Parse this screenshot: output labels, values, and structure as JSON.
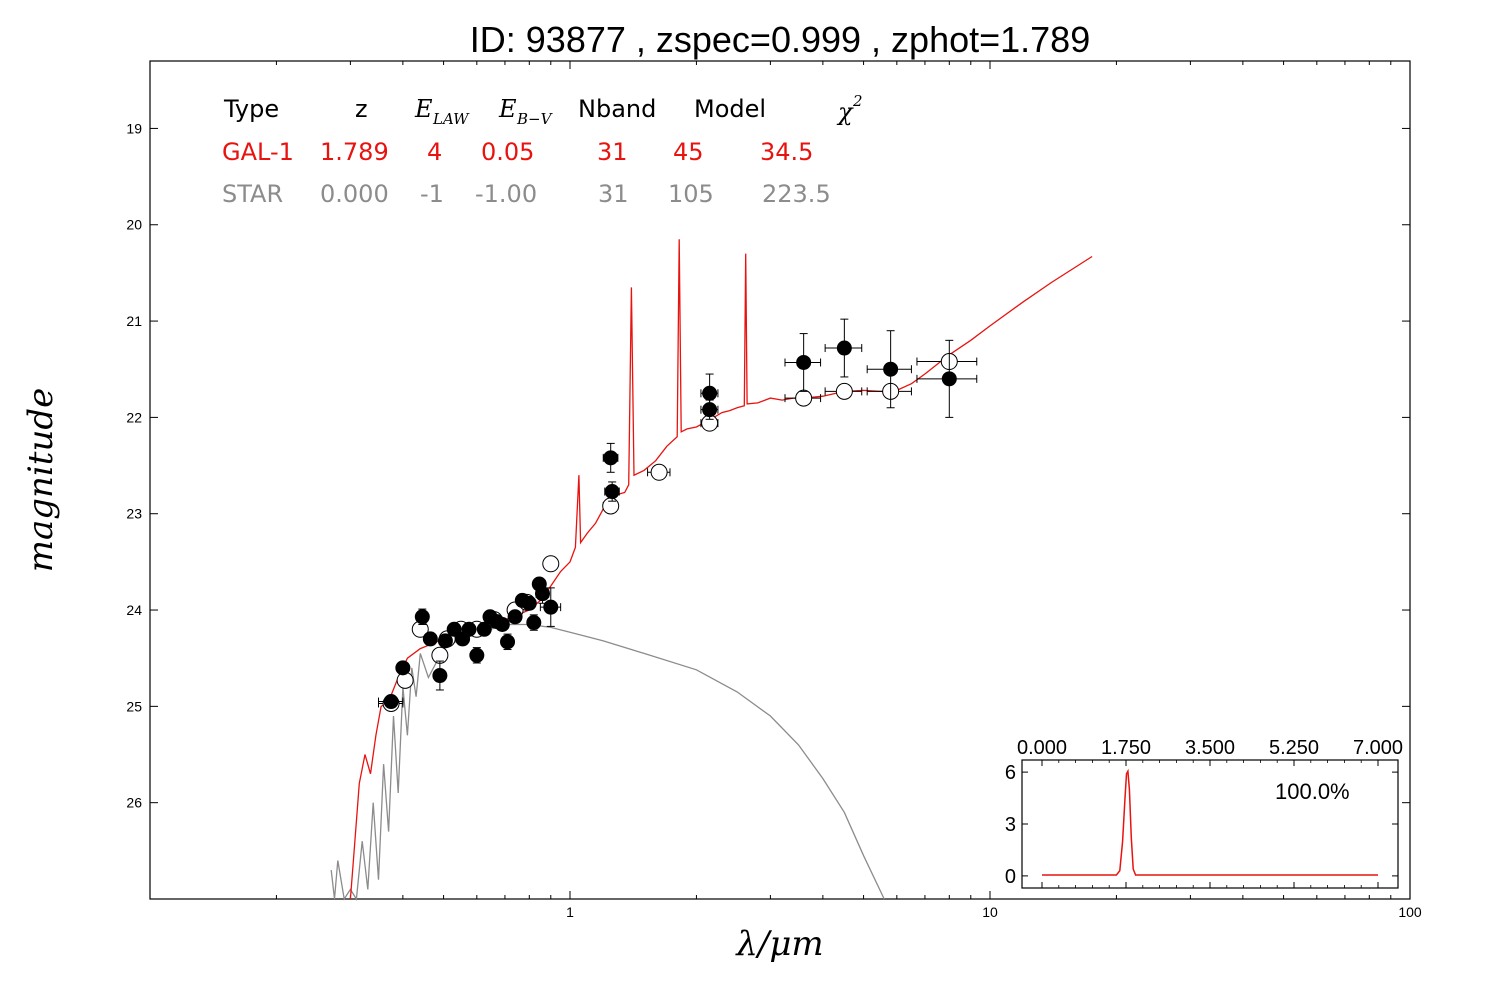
{
  "title": "ID:  93877 , zspec=0.999 , zphot=1.789",
  "colors": {
    "galaxy": "#e8130f",
    "star": "#8c8c8c",
    "points": "#000000"
  },
  "chart_data": {
    "type": "scatter",
    "xlabel": "λ/μm",
    "ylabel": "magnitude",
    "xscale": "log",
    "xlim": [
      0.1,
      100
    ],
    "ylim": [
      27,
      18.3
    ],
    "y_inverted": true,
    "xticks": [
      "1",
      "10",
      "100"
    ],
    "yticks": [
      "19",
      "20",
      "21",
      "22",
      "23",
      "24",
      "25",
      "26"
    ],
    "table": {
      "headers": [
        "Type",
        "z",
        "E_LAW",
        "E_B−V",
        "Nband",
        "Model",
        "χ²"
      ],
      "rows": [
        {
          "type": "GAL-1",
          "z": "1.789",
          "elaw": "4",
          "ebv": "0.05",
          "nband": "31",
          "model": "45",
          "chi2": "34.5"
        },
        {
          "type": "STAR",
          "z": "0.000",
          "elaw": "-1",
          "ebv": "-1.00",
          "nband": "31",
          "model": "105",
          "chi2": "223.5"
        }
      ]
    },
    "observed_points": [
      {
        "x": 0.375,
        "y": 24.95,
        "xerr": 0.025,
        "yerr": 0.05
      },
      {
        "x": 0.4,
        "y": 24.6,
        "xerr": 0.01,
        "yerr": 0.05
      },
      {
        "x": 0.445,
        "y": 24.07,
        "xerr": 0.01,
        "yerr": 0.08
      },
      {
        "x": 0.465,
        "y": 24.3,
        "xerr": 0.01,
        "yerr": 0.05
      },
      {
        "x": 0.49,
        "y": 24.68,
        "xerr": 0.01,
        "yerr": 0.15
      },
      {
        "x": 0.505,
        "y": 24.32,
        "xerr": 0.01,
        "yerr": 0.05
      },
      {
        "x": 0.53,
        "y": 24.2,
        "xerr": 0.01,
        "yerr": 0.05
      },
      {
        "x": 0.555,
        "y": 24.3,
        "xerr": 0.01,
        "yerr": 0.05
      },
      {
        "x": 0.575,
        "y": 24.2,
        "xerr": 0.01,
        "yerr": 0.05
      },
      {
        "x": 0.6,
        "y": 24.47,
        "xerr": 0.01,
        "yerr": 0.08
      },
      {
        "x": 0.625,
        "y": 24.2,
        "xerr": 0.01,
        "yerr": 0.05
      },
      {
        "x": 0.645,
        "y": 24.07,
        "xerr": 0.01,
        "yerr": 0.05
      },
      {
        "x": 0.67,
        "y": 24.12,
        "xerr": 0.01,
        "yerr": 0.05
      },
      {
        "x": 0.69,
        "y": 24.15,
        "xerr": 0.01,
        "yerr": 0.05
      },
      {
        "x": 0.71,
        "y": 24.33,
        "xerr": 0.01,
        "yerr": 0.08
      },
      {
        "x": 0.74,
        "y": 24.07,
        "xerr": 0.01,
        "yerr": 0.05
      },
      {
        "x": 0.77,
        "y": 23.9,
        "xerr": 0.02,
        "yerr": 0.05
      },
      {
        "x": 0.8,
        "y": 23.93,
        "xerr": 0.02,
        "yerr": 0.05
      },
      {
        "x": 0.82,
        "y": 24.13,
        "xerr": 0.02,
        "yerr": 0.08
      },
      {
        "x": 0.845,
        "y": 23.73,
        "xerr": 0.02,
        "yerr": 0.05
      },
      {
        "x": 0.86,
        "y": 23.83,
        "xerr": 0.03,
        "yerr": 0.1
      },
      {
        "x": 0.9,
        "y": 23.97,
        "xerr": 0.05,
        "yerr": 0.2
      },
      {
        "x": 1.25,
        "y": 22.42,
        "xerr": 0.05,
        "yerr": 0.15
      },
      {
        "x": 1.26,
        "y": 22.77,
        "xerr": 0.05,
        "yerr": 0.1
      },
      {
        "x": 2.15,
        "y": 21.75,
        "xerr": 0.1,
        "yerr": 0.2
      },
      {
        "x": 2.15,
        "y": 21.92,
        "xerr": 0.1,
        "yerr": 0.1
      },
      {
        "x": 3.6,
        "y": 21.43,
        "xerr": 0.35,
        "yerr": 0.3
      },
      {
        "x": 4.5,
        "y": 21.28,
        "xerr": 0.45,
        "yerr": 0.3
      },
      {
        "x": 5.8,
        "y": 21.5,
        "xerr": 0.7,
        "yerr": 0.4
      },
      {
        "x": 8.0,
        "y": 21.6,
        "xerr": 1.3,
        "yerr": 0.4
      }
    ],
    "model_points": [
      {
        "x": 0.375,
        "y": 24.97,
        "xerr": 0.025
      },
      {
        "x": 0.405,
        "y": 24.73,
        "xerr": 0.01
      },
      {
        "x": 0.44,
        "y": 24.2,
        "xerr": 0.01
      },
      {
        "x": 0.49,
        "y": 24.47,
        "xerr": 0.01
      },
      {
        "x": 0.51,
        "y": 24.3,
        "xerr": 0.01
      },
      {
        "x": 0.55,
        "y": 24.2,
        "xerr": 0.01
      },
      {
        "x": 0.6,
        "y": 24.2,
        "xerr": 0.01
      },
      {
        "x": 0.66,
        "y": 24.1,
        "xerr": 0.01
      },
      {
        "x": 0.74,
        "y": 24.0,
        "xerr": 0.02
      },
      {
        "x": 0.79,
        "y": 23.92,
        "xerr": 0.02
      },
      {
        "x": 0.9,
        "y": 23.52,
        "xerr": 0.03
      },
      {
        "x": 1.25,
        "y": 22.92,
        "xerr": 0.05
      },
      {
        "x": 1.63,
        "y": 22.57,
        "xerr": 0.1
      },
      {
        "x": 2.15,
        "y": 22.06,
        "xerr": 0.1
      },
      {
        "x": 3.6,
        "y": 21.8,
        "xerr": 0.35
      },
      {
        "x": 4.5,
        "y": 21.73,
        "xerr": 0.45
      },
      {
        "x": 5.8,
        "y": 21.73,
        "xerr": 0.7
      },
      {
        "x": 8.0,
        "y": 21.42,
        "xerr": 1.3
      }
    ],
    "galaxy_sed": [
      [
        0.3,
        27.0
      ],
      [
        0.305,
        26.6
      ],
      [
        0.315,
        25.8
      ],
      [
        0.325,
        25.5
      ],
      [
        0.335,
        25.7
      ],
      [
        0.345,
        25.3
      ],
      [
        0.355,
        25.0
      ],
      [
        0.37,
        24.95
      ],
      [
        0.39,
        24.7
      ],
      [
        0.41,
        24.5
      ],
      [
        0.44,
        24.4
      ],
      [
        0.47,
        24.35
      ],
      [
        0.5,
        24.3
      ],
      [
        0.55,
        24.25
      ],
      [
        0.6,
        24.2
      ],
      [
        0.65,
        24.15
      ],
      [
        0.7,
        24.1
      ],
      [
        0.75,
        24.05
      ],
      [
        0.8,
        24.0
      ],
      [
        0.85,
        23.9
      ],
      [
        0.9,
        23.75
      ],
      [
        0.95,
        23.6
      ],
      [
        1.0,
        23.5
      ],
      [
        1.03,
        23.35
      ],
      [
        1.05,
        22.6
      ],
      [
        1.06,
        23.3
      ],
      [
        1.1,
        23.2
      ],
      [
        1.15,
        23.1
      ],
      [
        1.2,
        22.95
      ],
      [
        1.25,
        22.85
      ],
      [
        1.3,
        22.8
      ],
      [
        1.35,
        22.78
      ],
      [
        1.38,
        22.7
      ],
      [
        1.4,
        20.65
      ],
      [
        1.42,
        22.6
      ],
      [
        1.5,
        22.55
      ],
      [
        1.6,
        22.45
      ],
      [
        1.7,
        22.3
      ],
      [
        1.8,
        22.2
      ],
      [
        1.82,
        20.15
      ],
      [
        1.84,
        22.15
      ],
      [
        1.9,
        22.12
      ],
      [
        2.0,
        22.1
      ],
      [
        2.1,
        22.05
      ],
      [
        2.2,
        22.0
      ],
      [
        2.3,
        21.95
      ],
      [
        2.4,
        21.93
      ],
      [
        2.5,
        21.9
      ],
      [
        2.6,
        21.88
      ],
      [
        2.62,
        20.3
      ],
      [
        2.64,
        21.86
      ],
      [
        2.8,
        21.85
      ],
      [
        3.0,
        21.8
      ],
      [
        3.2,
        21.82
      ],
      [
        3.4,
        21.8
      ],
      [
        3.6,
        21.8
      ],
      [
        4.0,
        21.78
      ],
      [
        4.5,
        21.73
      ],
      [
        5.0,
        21.72
      ],
      [
        5.5,
        21.73
      ],
      [
        6.0,
        21.72
      ],
      [
        6.5,
        21.65
      ],
      [
        7.0,
        21.55
      ],
      [
        8.0,
        21.35
      ],
      [
        9.0,
        21.2
      ],
      [
        10.0,
        21.05
      ],
      [
        12.0,
        20.8
      ],
      [
        14.0,
        20.6
      ],
      [
        17.5,
        20.33
      ]
    ],
    "star_sed": [
      [
        0.27,
        26.7
      ],
      [
        0.275,
        27.0
      ],
      [
        0.28,
        26.6
      ],
      [
        0.29,
        27.0
      ],
      [
        0.3,
        26.9
      ],
      [
        0.31,
        27.0
      ],
      [
        0.32,
        26.4
      ],
      [
        0.33,
        26.9
      ],
      [
        0.34,
        26.0
      ],
      [
        0.35,
        26.8
      ],
      [
        0.36,
        25.6
      ],
      [
        0.37,
        26.3
      ],
      [
        0.38,
        25.1
      ],
      [
        0.39,
        25.9
      ],
      [
        0.4,
        24.8
      ],
      [
        0.41,
        25.3
      ],
      [
        0.42,
        24.6
      ],
      [
        0.43,
        24.9
      ],
      [
        0.44,
        24.45
      ],
      [
        0.46,
        24.7
      ],
      [
        0.5,
        24.4
      ],
      [
        0.55,
        24.3
      ],
      [
        0.6,
        24.25
      ],
      [
        0.7,
        24.15
      ],
      [
        0.8,
        24.15
      ],
      [
        0.9,
        24.18
      ],
      [
        1.0,
        24.23
      ],
      [
        1.2,
        24.32
      ],
      [
        1.5,
        24.45
      ],
      [
        2.0,
        24.62
      ],
      [
        2.5,
        24.85
      ],
      [
        3.0,
        25.1
      ],
      [
        3.5,
        25.4
      ],
      [
        4.0,
        25.75
      ],
      [
        4.5,
        26.1
      ],
      [
        5.0,
        26.55
      ],
      [
        5.6,
        27.0
      ]
    ],
    "inset": {
      "type": "line",
      "xticks": [
        "0.000",
        "1.750",
        "3.500",
        "5.250",
        "7.000"
      ],
      "yticks": [
        "6",
        "3",
        "0"
      ],
      "xlim": [
        0,
        7
      ],
      "ylim": [
        -0.7,
        6.7
      ],
      "label": "100.0%",
      "pdz": [
        [
          0.0,
          0.05
        ],
        [
          1.55,
          0.05
        ],
        [
          1.62,
          0.3
        ],
        [
          1.68,
          2.0
        ],
        [
          1.73,
          4.5
        ],
        [
          1.76,
          5.9
        ],
        [
          1.79,
          6.05
        ],
        [
          1.82,
          5.0
        ],
        [
          1.86,
          2.2
        ],
        [
          1.9,
          0.4
        ],
        [
          1.95,
          0.05
        ],
        [
          7.0,
          0.05
        ]
      ]
    }
  }
}
